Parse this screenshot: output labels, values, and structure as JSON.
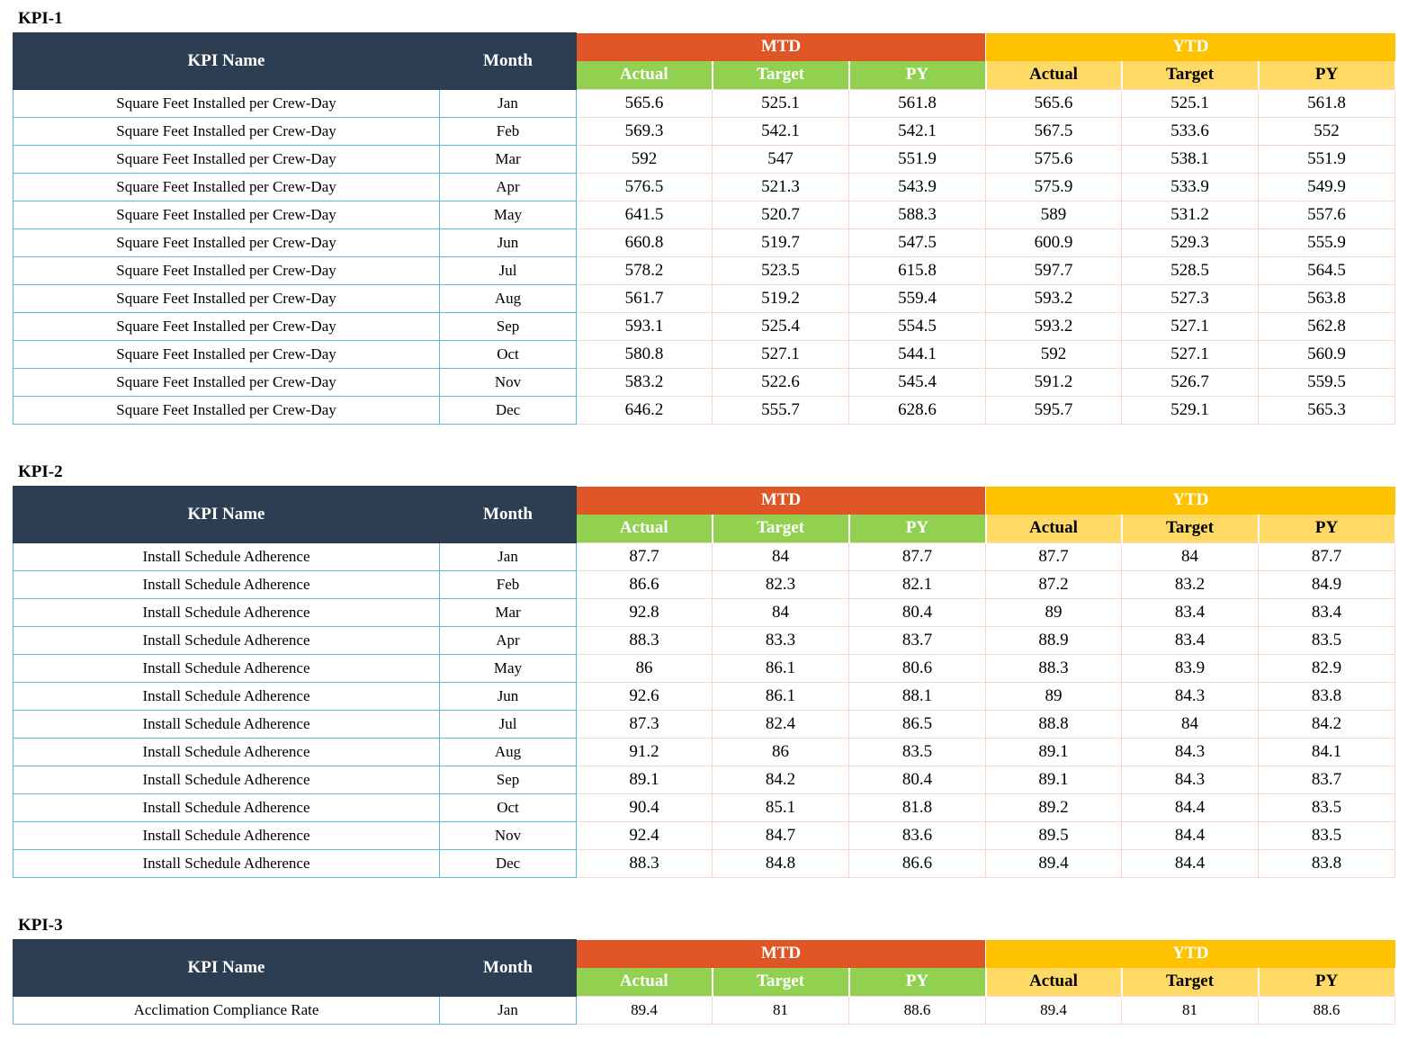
{
  "headers": {
    "kpi_name": "KPI Name",
    "month": "Month",
    "mtd": "MTD",
    "ytd": "YTD",
    "actual": "Actual",
    "target": "Target",
    "py": "PY"
  },
  "colors": {
    "header_dark": "#2e3e52",
    "mtd": "#e05525",
    "ytd": "#fec200",
    "mtd_sub": "#92d050",
    "ytd_sub": "#ffd966"
  },
  "sections": [
    {
      "title": "KPI-1",
      "rows": [
        {
          "name": "Square Feet Installed per Crew-Day",
          "month": "Jan",
          "values": [
            "565.6",
            "525.1",
            "561.8",
            "565.6",
            "525.1",
            "561.8"
          ]
        },
        {
          "name": "Square Feet Installed per Crew-Day",
          "month": "Feb",
          "values": [
            "569.3",
            "542.1",
            "542.1",
            "567.5",
            "533.6",
            "552"
          ]
        },
        {
          "name": "Square Feet Installed per Crew-Day",
          "month": "Mar",
          "values": [
            "592",
            "547",
            "551.9",
            "575.6",
            "538.1",
            "551.9"
          ]
        },
        {
          "name": "Square Feet Installed per Crew-Day",
          "month": "Apr",
          "values": [
            "576.5",
            "521.3",
            "543.9",
            "575.9",
            "533.9",
            "549.9"
          ]
        },
        {
          "name": "Square Feet Installed per Crew-Day",
          "month": "May",
          "values": [
            "641.5",
            "520.7",
            "588.3",
            "589",
            "531.2",
            "557.6"
          ]
        },
        {
          "name": "Square Feet Installed per Crew-Day",
          "month": "Jun",
          "values": [
            "660.8",
            "519.7",
            "547.5",
            "600.9",
            "529.3",
            "555.9"
          ]
        },
        {
          "name": "Square Feet Installed per Crew-Day",
          "month": "Jul",
          "values": [
            "578.2",
            "523.5",
            "615.8",
            "597.7",
            "528.5",
            "564.5"
          ]
        },
        {
          "name": "Square Feet Installed per Crew-Day",
          "month": "Aug",
          "values": [
            "561.7",
            "519.2",
            "559.4",
            "593.2",
            "527.3",
            "563.8"
          ]
        },
        {
          "name": "Square Feet Installed per Crew-Day",
          "month": "Sep",
          "values": [
            "593.1",
            "525.4",
            "554.5",
            "593.2",
            "527.1",
            "562.8"
          ]
        },
        {
          "name": "Square Feet Installed per Crew-Day",
          "month": "Oct",
          "values": [
            "580.8",
            "527.1",
            "544.1",
            "592",
            "527.1",
            "560.9"
          ]
        },
        {
          "name": "Square Feet Installed per Crew-Day",
          "month": "Nov",
          "values": [
            "583.2",
            "522.6",
            "545.4",
            "591.2",
            "526.7",
            "559.5"
          ]
        },
        {
          "name": "Square Feet Installed per Crew-Day",
          "month": "Dec",
          "values": [
            "646.2",
            "555.7",
            "628.6",
            "595.7",
            "529.1",
            "565.3"
          ]
        }
      ]
    },
    {
      "title": "KPI-2",
      "rows": [
        {
          "name": "Install Schedule Adherence",
          "month": "Jan",
          "values": [
            "87.7",
            "84",
            "87.7",
            "87.7",
            "84",
            "87.7"
          ]
        },
        {
          "name": "Install Schedule Adherence",
          "month": "Feb",
          "values": [
            "86.6",
            "82.3",
            "82.1",
            "87.2",
            "83.2",
            "84.9"
          ]
        },
        {
          "name": "Install Schedule Adherence",
          "month": "Mar",
          "values": [
            "92.8",
            "84",
            "80.4",
            "89",
            "83.4",
            "83.4"
          ]
        },
        {
          "name": "Install Schedule Adherence",
          "month": "Apr",
          "values": [
            "88.3",
            "83.3",
            "83.7",
            "88.9",
            "83.4",
            "83.5"
          ]
        },
        {
          "name": "Install Schedule Adherence",
          "month": "May",
          "values": [
            "86",
            "86.1",
            "80.6",
            "88.3",
            "83.9",
            "82.9"
          ]
        },
        {
          "name": "Install Schedule Adherence",
          "month": "Jun",
          "values": [
            "92.6",
            "86.1",
            "88.1",
            "89",
            "84.3",
            "83.8"
          ]
        },
        {
          "name": "Install Schedule Adherence",
          "month": "Jul",
          "values": [
            "87.3",
            "82.4",
            "86.5",
            "88.8",
            "84",
            "84.2"
          ]
        },
        {
          "name": "Install Schedule Adherence",
          "month": "Aug",
          "values": [
            "91.2",
            "86",
            "83.5",
            "89.1",
            "84.3",
            "84.1"
          ]
        },
        {
          "name": "Install Schedule Adherence",
          "month": "Sep",
          "values": [
            "89.1",
            "84.2",
            "80.4",
            "89.1",
            "84.3",
            "83.7"
          ]
        },
        {
          "name": "Install Schedule Adherence",
          "month": "Oct",
          "values": [
            "90.4",
            "85.1",
            "81.8",
            "89.2",
            "84.4",
            "83.5"
          ]
        },
        {
          "name": "Install Schedule Adherence",
          "month": "Nov",
          "values": [
            "92.4",
            "84.7",
            "83.6",
            "89.5",
            "84.4",
            "83.5"
          ]
        },
        {
          "name": "Install Schedule Adherence",
          "month": "Dec",
          "values": [
            "88.3",
            "84.8",
            "86.6",
            "89.4",
            "84.4",
            "83.8"
          ]
        }
      ]
    },
    {
      "title": "KPI-3",
      "rows": [
        {
          "name": "Acclimation Compliance Rate",
          "month": "Jan",
          "values": [
            "89.4",
            "81",
            "88.6",
            "89.4",
            "81",
            "88.6"
          ]
        }
      ]
    }
  ]
}
